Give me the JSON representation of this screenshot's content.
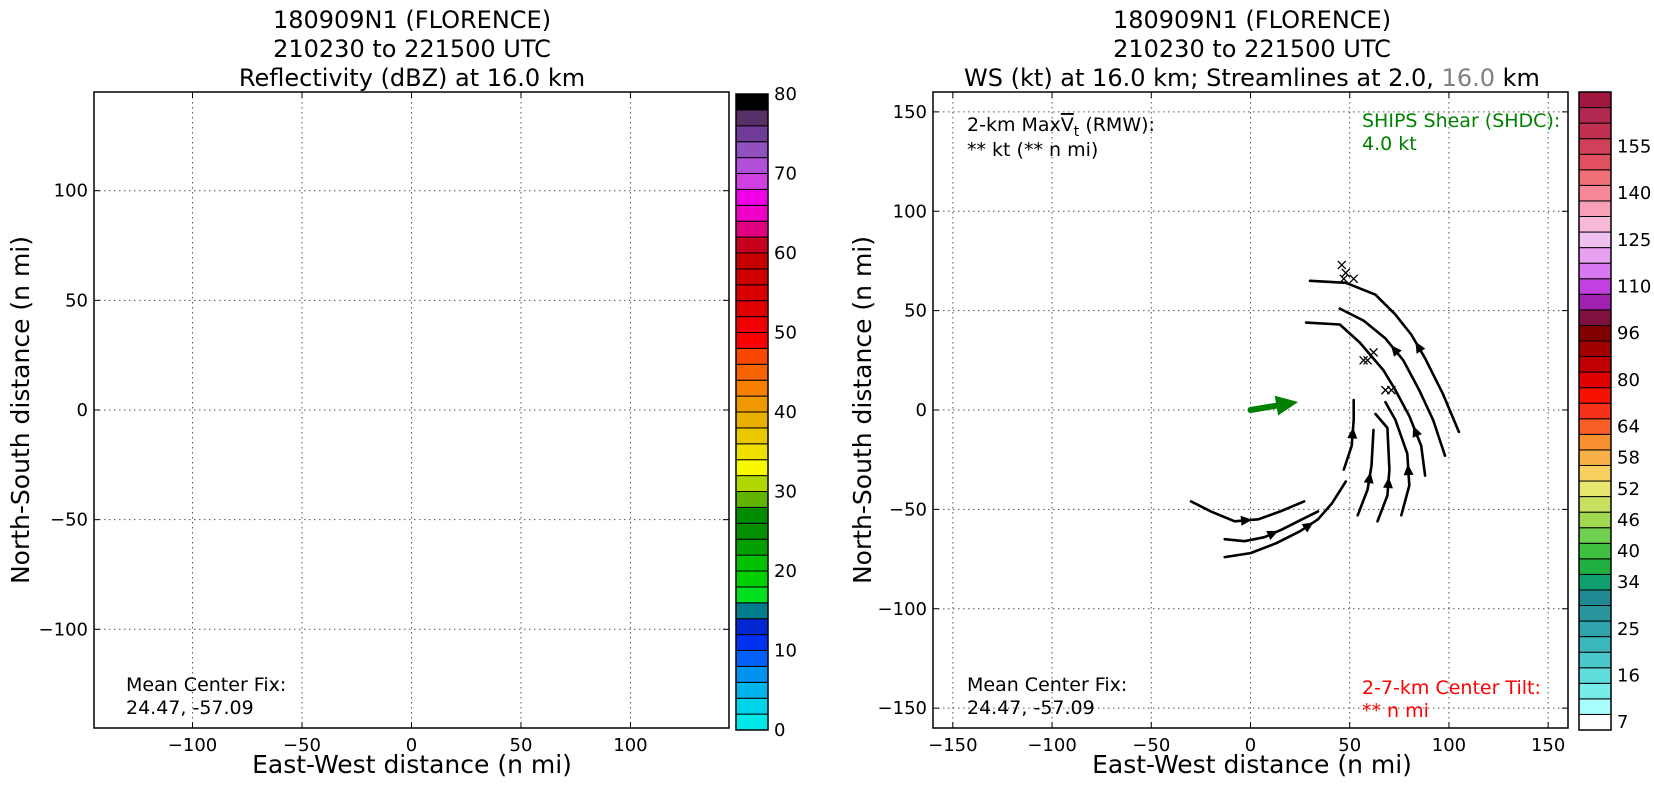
{
  "chart_data": [
    {
      "type": "heatmap",
      "title_lines": [
        "180909N1 (FLORENCE)",
        "210230 to 221500 UTC",
        "Reflectivity (dBZ) at 16.0 km"
      ],
      "xlabel": "East-West distance (n mi)",
      "ylabel": "North-South distance (n mi)",
      "xlim": [
        -145,
        145
      ],
      "ylim": [
        -145,
        145
      ],
      "xticks": [
        -100,
        -50,
        0,
        50,
        100
      ],
      "yticks": [
        -100,
        -50,
        0,
        50,
        100
      ],
      "xtick_labels": [
        "−100",
        "−50",
        "0",
        "50",
        "100"
      ],
      "ytick_labels": [
        "−100",
        "−50",
        "0",
        "50",
        "100"
      ],
      "grid": true,
      "annotations": {
        "center_fix_label": "Mean Center Fix:",
        "center_fix_value": "24.47, -57.09"
      },
      "colorbar": {
        "min": 0,
        "max": 80,
        "tick_values": [
          0,
          10,
          20,
          30,
          40,
          50,
          60,
          70,
          80
        ],
        "colors": [
          "#00e8e8",
          "#00d4ec",
          "#00b4ec",
          "#0094f0",
          "#0060f8",
          "#0030f0",
          "#0028d0",
          "#007c8c",
          "#00e020",
          "#00d000",
          "#00c000",
          "#00a000",
          "#009000",
          "#008c00",
          "#60b400",
          "#b0d800",
          "#f8f800",
          "#f0e000",
          "#e8c800",
          "#e8b000",
          "#f09800",
          "#f88000",
          "#f86400",
          "#f84800",
          "#f80000",
          "#f00000",
          "#e00000",
          "#d80000",
          "#d00000",
          "#c80000",
          "#c80020",
          "#e00080",
          "#f000c8",
          "#f000e8",
          "#d040e0",
          "#b050d8",
          "#9050c0",
          "#703c98",
          "#583068",
          "#000000"
        ]
      }
    },
    {
      "type": "heatmap",
      "title_lines": [
        "180909N1 (FLORENCE)",
        "210230 to 221500 UTC"
      ],
      "title_line3": {
        "prefix": "WS (kt) at 16.0 km; Streamlines at 2.0,",
        "gray": "16.0",
        "suffix": "km"
      },
      "xlabel": "East-West distance (n mi)",
      "ylabel": "North-South distance (n mi)",
      "xlim": [
        -160,
        160
      ],
      "ylim": [
        -160,
        160
      ],
      "xticks": [
        -150,
        -100,
        -50,
        0,
        50,
        100,
        150
      ],
      "yticks": [
        -150,
        -100,
        -50,
        0,
        50,
        100,
        150
      ],
      "xtick_labels": [
        "−150",
        "−100",
        "−50",
        "0",
        "50",
        "100",
        "150"
      ],
      "ytick_labels": [
        "−150",
        "−100",
        "−50",
        "0",
        "50",
        "100",
        "150"
      ],
      "grid": true,
      "annotations": {
        "vmax_line1_prefix": "2-km Max",
        "vmax_symbol": "V",
        "vmax_sub": "t",
        "vmax_line1_suffix": " (RMW):",
        "vmax_line2": "** kt (** n mi)",
        "shear_label": "SHIPS Shear (SHDC):",
        "shear_value": "4.0 kt",
        "center_fix_label": "Mean Center Fix:",
        "center_fix_value": "24.47, -57.09",
        "tilt_label": "2-7-km Center Tilt:",
        "tilt_value": "** n mi"
      },
      "colors": {
        "shear": "#008000",
        "tilt": "#ff0000",
        "gray": "#808080"
      },
      "shear_vector": {
        "x0": 0,
        "y0": 0,
        "x1": 24,
        "y1": 4
      },
      "center_marks": [
        {
          "x": 46,
          "y": 73
        },
        {
          "x": 48,
          "y": 69
        },
        {
          "x": 52,
          "y": 66
        },
        {
          "x": 47,
          "y": 66
        },
        {
          "x": 62,
          "y": 29
        },
        {
          "x": 59,
          "y": 25
        },
        {
          "x": 57,
          "y": 25
        },
        {
          "x": 68,
          "y": 10
        },
        {
          "x": 71,
          "y": 10
        }
      ],
      "streamlines": [
        {
          "points": [
            [
              -30,
              -46
            ],
            [
              -20,
              -51
            ],
            [
              -8,
              -56
            ],
            [
              4,
              -55
            ],
            [
              15,
              -51
            ],
            [
              27,
              -46
            ]
          ],
          "arrow_at": 2
        },
        {
          "points": [
            [
              -13,
              -65
            ],
            [
              -3,
              -66
            ],
            [
              7,
              -64
            ],
            [
              16,
              -60
            ],
            [
              26,
              -55
            ],
            [
              34,
              -51
            ]
          ],
          "arrow_at": 2
        },
        {
          "points": [
            [
              -13,
              -74
            ],
            [
              0,
              -72
            ],
            [
              13,
              -67
            ],
            [
              25,
              -61
            ],
            [
              34,
              -55
            ],
            [
              41,
              -47
            ],
            [
              48,
              -36
            ]
          ],
          "arrow_at": 3
        },
        {
          "points": [
            [
              47,
              -30
            ],
            [
              51,
              -18
            ],
            [
              52,
              -5
            ],
            [
              52,
              5
            ]
          ],
          "arrow_at": 1
        },
        {
          "points": [
            [
              54,
              -53
            ],
            [
              59,
              -40
            ],
            [
              61,
              -28
            ],
            [
              62,
              -10
            ]
          ],
          "arrow_at": 1
        },
        {
          "points": [
            [
              64,
              -56
            ],
            [
              69,
              -43
            ],
            [
              70,
              -30
            ],
            [
              69,
              -9
            ],
            [
              63,
              -2
            ]
          ],
          "arrow_at": 1
        },
        {
          "points": [
            [
              76,
              -53
            ],
            [
              80,
              -38
            ],
            [
              79,
              -22
            ],
            [
              73,
              -5
            ],
            [
              68,
              4
            ]
          ],
          "arrow_at": 1
        },
        {
          "points": [
            [
              88,
              -33
            ],
            [
              86,
              -18
            ],
            [
              80,
              -3
            ],
            [
              73,
              10
            ],
            [
              67,
              20
            ],
            [
              55,
              34
            ],
            [
              45,
              43
            ],
            [
              28,
              44
            ]
          ],
          "arrow_at": 1
        },
        {
          "points": [
            [
              98,
              -23
            ],
            [
              92,
              -5
            ],
            [
              85,
              10
            ],
            [
              77,
              25
            ],
            [
              68,
              36
            ],
            [
              57,
              45
            ],
            [
              45,
              51
            ]
          ],
          "arrow_at": 3
        },
        {
          "points": [
            [
              105,
              -11
            ],
            [
              97,
              8
            ],
            [
              88,
              26
            ],
            [
              81,
              38
            ],
            [
              73,
              48
            ],
            [
              63,
              58
            ],
            [
              48,
              64
            ],
            [
              30,
              65
            ]
          ],
          "arrow_at": 2
        }
      ],
      "colorbar": {
        "tick_labels": [
          "7",
          "16",
          "25",
          "34",
          "40",
          "46",
          "52",
          "58",
          "64",
          "80",
          "96",
          "110",
          "125",
          "140",
          "155"
        ],
        "tick_bins": [
          0,
          3,
          6,
          9,
          11,
          13,
          15,
          17,
          19,
          22,
          25,
          28,
          31,
          34,
          37
        ],
        "colors": [
          "#ffffff",
          "#a8fcfc",
          "#78eceb",
          "#60dcdc",
          "#4cc8cc",
          "#3cb8bc",
          "#30a4ac",
          "#28949c",
          "#208890",
          "#10a070",
          "#20b040",
          "#40c040",
          "#70d050",
          "#a0d850",
          "#c8e060",
          "#e8e870",
          "#f8d060",
          "#f8b048",
          "#f89030",
          "#f86028",
          "#f83018",
          "#f81000",
          "#e00000",
          "#c00000",
          "#a00000",
          "#800000",
          "#801040",
          "#a020b0",
          "#c040e0",
          "#d878f0",
          "#e8a0f0",
          "#f0c0f0",
          "#f8b8d8",
          "#f8a0b8",
          "#f88898",
          "#f07078",
          "#e05060",
          "#d04058",
          "#c03050",
          "#b02850",
          "#a01840"
        ]
      }
    }
  ]
}
